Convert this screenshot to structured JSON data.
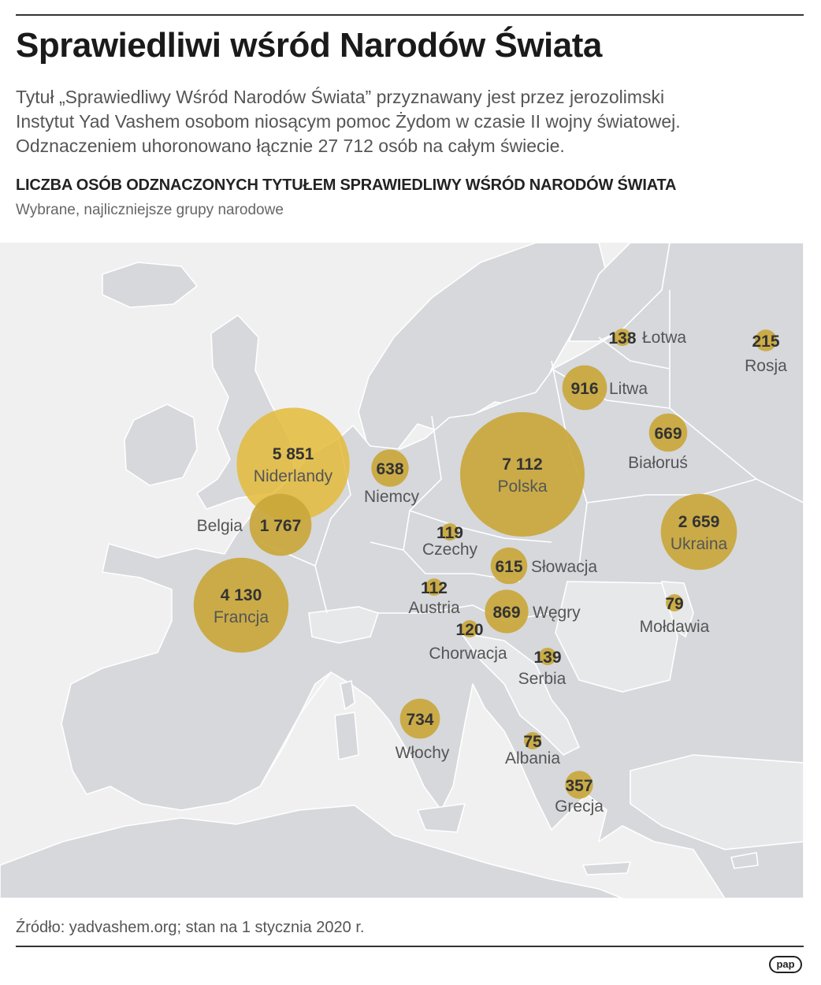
{
  "header": {
    "title": "Sprawiedliwi wśród Narodów Świata",
    "intro_lines": [
      "Tytuł „Sprawiedliwy Wśród Narodów Świata” przyznawany jest przez jerozolimski",
      "Instytut Yad Vashem osobom niosącym pomoc Żydom w czasie II wojny światowej.",
      "Odznaczeniem uhoronowano łącznie 27 712 osób na całym świecie."
    ]
  },
  "map": {
    "title": "LICZBA OSÓB ODZNACZONYCH TYTUŁEM SPRAWIEDLIWY WŚRÓD NARODÓW ŚWIATA",
    "subtitle": "Wybrane, najliczniejsze grupy narodowe",
    "colors": {
      "sea": "#f0f0f0",
      "land": "#d6d8dc",
      "bubble": "#c9a73a",
      "bubble_highlight": "#e3bb3a",
      "border": "#ffffff"
    },
    "bubbles": [
      {
        "id": "polska",
        "name": "Polska",
        "value_label": "7 112",
        "value": 7112
      },
      {
        "id": "niderlandy",
        "name": "Niderlandy",
        "value_label": "5 851",
        "value": 5851
      },
      {
        "id": "francja",
        "name": "Francja",
        "value_label": "4 130",
        "value": 4130
      },
      {
        "id": "ukraina",
        "name": "Ukraina",
        "value_label": "2 659",
        "value": 2659
      },
      {
        "id": "belgia",
        "name": "Belgia",
        "value_label": "1 767",
        "value": 1767
      },
      {
        "id": "litwa",
        "name": "Litwa",
        "value_label": "916",
        "value": 916
      },
      {
        "id": "wegry",
        "name": "Węgry",
        "value_label": "869",
        "value": 869
      },
      {
        "id": "wlochy",
        "name": "Włochy",
        "value_label": "734",
        "value": 734
      },
      {
        "id": "bialorus",
        "name": "Białoruś",
        "value_label": "669",
        "value": 669
      },
      {
        "id": "niemcy",
        "name": "Niemcy",
        "value_label": "638",
        "value": 638
      },
      {
        "id": "slowacja",
        "name": "Słowacja",
        "value_label": "615",
        "value": 615
      },
      {
        "id": "grecja",
        "name": "Grecja",
        "value_label": "357",
        "value": 357
      },
      {
        "id": "rosja",
        "name": "Rosja",
        "value_label": "215",
        "value": 215
      },
      {
        "id": "serbia",
        "name": "Serbia",
        "value_label": "139",
        "value": 139
      },
      {
        "id": "lotwa",
        "name": "Łotwa",
        "value_label": "138",
        "value": 138
      },
      {
        "id": "chorwacja",
        "name": "Chorwacja",
        "value_label": "120",
        "value": 120
      },
      {
        "id": "czechy",
        "name": "Czechy",
        "value_label": "119",
        "value": 119
      },
      {
        "id": "austria",
        "name": "Austria",
        "value_label": "112",
        "value": 112
      },
      {
        "id": "moldawia",
        "name": "Mołdawia",
        "value_label": "79",
        "value": 79
      },
      {
        "id": "albania",
        "name": "Albania",
        "value_label": "75",
        "value": 75
      }
    ]
  },
  "footer": {
    "source": "Źródło: yadvashem.org; stan na 1 stycznia 2020 r.",
    "logo_text": "pap"
  }
}
